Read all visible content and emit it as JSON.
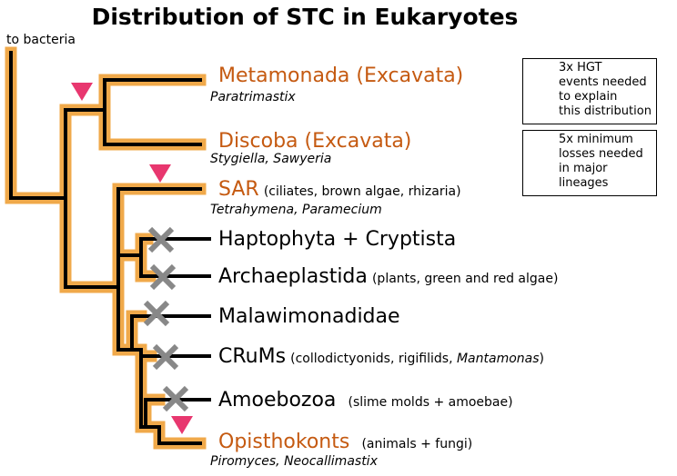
{
  "title": "Distribution of STC in Eukaryotes",
  "root_label": "to bacteria",
  "colors": {
    "presence_highlight": "#f0a94a",
    "branch": "#000000",
    "hgt_marker": "#e8376f",
    "loss_marker": "#888888",
    "present_label": "#c55a11"
  },
  "taxa": {
    "metamonada": {
      "name": "Metamonada (Excavata)",
      "species": "Paratrimastix"
    },
    "discoba": {
      "name": "Discoba (Excavata)",
      "species": "Stygiella, Sawyeria"
    },
    "sar": {
      "name": "SAR",
      "note": "(ciliates, brown algae, rhizaria)",
      "species": "Tetrahymena, Paramecium"
    },
    "haptophyta": {
      "name": "Haptophyta + Cryptista"
    },
    "archaeplastida": {
      "name": "Archaeplastida",
      "note": "(plants, green and red algae)"
    },
    "malawimonadidae": {
      "name": "Malawimonadidae"
    },
    "crums": {
      "name": "CRuMs",
      "note_prefix": "(collodictyonids, rigifilids, ",
      "note_italic": "Mantamonas",
      "note_suffix": ")"
    },
    "amoebozoa": {
      "name": "Amoebozoa",
      "note": "(slime molds + amoebae)"
    },
    "opisthokonts": {
      "name": "Opisthokonts",
      "note": "(animals + fungi)",
      "species": "Piromyces, Neocallimastix"
    }
  },
  "legend": {
    "hgt": {
      "text": "3x HGT\nevents needed\nto explain\nthis distribution",
      "icon": "pink-down-triangle"
    },
    "loss": {
      "text": "5x minimum\nlosses needed\nin major\nlineages",
      "icon": "grey-x"
    }
  }
}
